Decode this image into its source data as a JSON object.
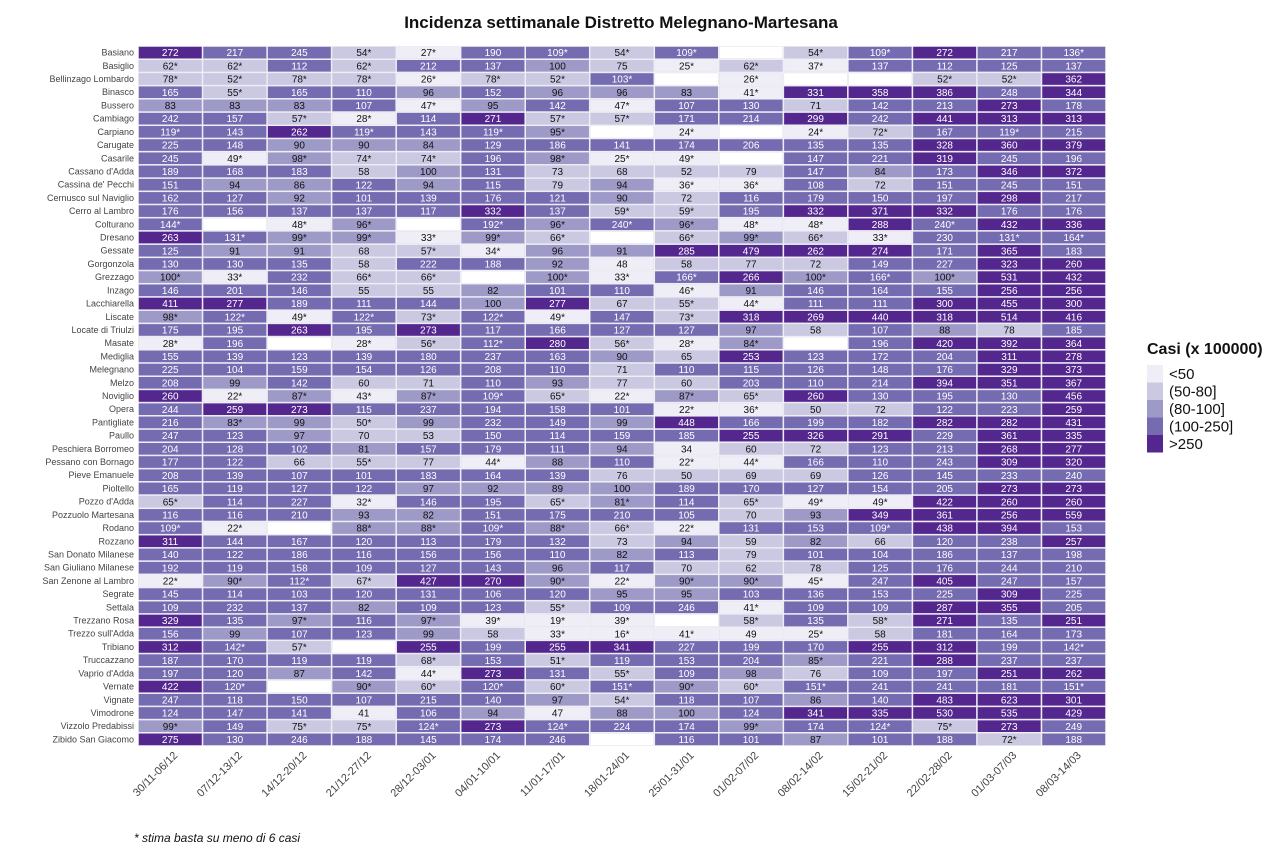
{
  "chart_data": {
    "type": "heatmap",
    "title": "Incidenza settimanale Distretto Melegnano-Martesana",
    "footnote": "* stima basta su meno di 6 casi",
    "legend_title": "Casi (x 100000)",
    "legend_placement": "right",
    "legend": [
      {
        "label": "<50",
        "color": "#efedf5"
      },
      {
        "label": "(50-80]",
        "color": "#cbc9e2"
      },
      {
        "label": "(80-100]",
        "color": "#9e9ac8"
      },
      {
        "label": "(100-250]",
        "color": "#756bb1"
      },
      {
        "label": ">250",
        "color": "#54278f"
      }
    ],
    "columns": [
      "30/11-06/12",
      "07/12-13/12",
      "14/12-20/12",
      "21/12-27/12",
      "28/12-03/01",
      "04/01-10/01",
      "11/01-17/01",
      "18/01-24/01",
      "25/01-31/01",
      "01/02-07/02",
      "08/02-14/02",
      "15/02-21/02",
      "22/02-28/02",
      "01/03-07/03",
      "08/03-14/03"
    ],
    "rows": [
      {
        "name": "Basiano",
        "values": [
          "272",
          "217",
          "245",
          "54*",
          "27*",
          "190",
          "109*",
          "54*",
          "109*",
          "",
          "54*",
          "109*",
          "272",
          "217",
          "136*"
        ]
      },
      {
        "name": "Basiglio",
        "values": [
          "62*",
          "62*",
          "112",
          "62*",
          "212",
          "137",
          "100",
          "75",
          "25*",
          "62*",
          "37*",
          "137",
          "112",
          "125",
          "137"
        ]
      },
      {
        "name": "Bellinzago Lombardo",
        "values": [
          "78*",
          "52*",
          "78*",
          "78*",
          "26*",
          "78*",
          "52*",
          "103*",
          "",
          "26*",
          "",
          "",
          "52*",
          "52*",
          "362"
        ]
      },
      {
        "name": "Binasco",
        "values": [
          "165",
          "55*",
          "165",
          "110",
          "96",
          "152",
          "96",
          "96",
          "83",
          "41*",
          "331",
          "358",
          "386",
          "248",
          "344"
        ]
      },
      {
        "name": "Bussero",
        "values": [
          "83",
          "83",
          "83",
          "107",
          "47*",
          "95",
          "142",
          "47*",
          "107",
          "130",
          "71",
          "142",
          "213",
          "273",
          "178"
        ]
      },
      {
        "name": "Cambiago",
        "values": [
          "242",
          "157",
          "57*",
          "28*",
          "114",
          "271",
          "57*",
          "57*",
          "171",
          "214",
          "299",
          "242",
          "441",
          "313",
          "313"
        ]
      },
      {
        "name": "Carpiano",
        "values": [
          "119*",
          "143",
          "262",
          "119*",
          "143",
          "119*",
          "95*",
          "",
          "24*",
          "",
          "24*",
          "72*",
          "167",
          "119*",
          "215"
        ]
      },
      {
        "name": "Carugate",
        "values": [
          "225",
          "148",
          "90",
          "90",
          "84",
          "129",
          "186",
          "141",
          "174",
          "206",
          "135",
          "135",
          "328",
          "360",
          "379"
        ]
      },
      {
        "name": "Casarile",
        "values": [
          "245",
          "49*",
          "98*",
          "74*",
          "74*",
          "196",
          "98*",
          "25*",
          "49*",
          "",
          "147",
          "221",
          "319",
          "245",
          "196"
        ]
      },
      {
        "name": "Cassano d'Adda",
        "values": [
          "189",
          "168",
          "183",
          "58",
          "100",
          "131",
          "73",
          "68",
          "52",
          "79",
          "147",
          "84",
          "173",
          "346",
          "372"
        ]
      },
      {
        "name": "Cassina de' Pecchi",
        "values": [
          "151",
          "94",
          "86",
          "122",
          "94",
          "115",
          "79",
          "94",
          "36*",
          "36*",
          "108",
          "72",
          "151",
          "245",
          "151"
        ]
      },
      {
        "name": "Cernusco sul Naviglio",
        "values": [
          "162",
          "127",
          "92",
          "101",
          "139",
          "176",
          "121",
          "90",
          "72",
          "116",
          "179",
          "150",
          "197",
          "298",
          "217"
        ]
      },
      {
        "name": "Cerro al Lambro",
        "values": [
          "176",
          "156",
          "137",
          "137",
          "117",
          "332",
          "137",
          "59*",
          "59*",
          "195",
          "332",
          "371",
          "332",
          "176",
          "176"
        ]
      },
      {
        "name": "Colturano",
        "values": [
          "144*",
          "",
          "48*",
          "96*",
          "",
          "192*",
          "96*",
          "240*",
          "96*",
          "48*",
          "48*",
          "288",
          "240*",
          "432",
          "336"
        ]
      },
      {
        "name": "Dresano",
        "values": [
          "263",
          "131*",
          "99*",
          "99*",
          "33*",
          "99*",
          "66*",
          "",
          "66*",
          "99*",
          "66*",
          "33*",
          "230",
          "131*",
          "164*"
        ]
      },
      {
        "name": "Gessate",
        "values": [
          "125",
          "91",
          "91",
          "68",
          "57*",
          "34*",
          "96",
          "91",
          "285",
          "479",
          "262",
          "274",
          "171",
          "365",
          "183"
        ]
      },
      {
        "name": "Gorgonzola",
        "values": [
          "130",
          "130",
          "135",
          "58",
          "222",
          "188",
          "92",
          "48",
          "58",
          "77",
          "72",
          "149",
          "227",
          "323",
          "260"
        ]
      },
      {
        "name": "Grezzago",
        "values": [
          "100*",
          "33*",
          "232",
          "66*",
          "66*",
          "",
          "100*",
          "33*",
          "166*",
          "266",
          "100*",
          "166*",
          "100*",
          "531",
          "432"
        ]
      },
      {
        "name": "Inzago",
        "values": [
          "146",
          "201",
          "146",
          "55",
          "55",
          "82",
          "101",
          "110",
          "46*",
          "91",
          "146",
          "164",
          "155",
          "256",
          "256"
        ]
      },
      {
        "name": "Lacchiarella",
        "values": [
          "411",
          "277",
          "189",
          "111",
          "144",
          "100",
          "277",
          "67",
          "55*",
          "44*",
          "111",
          "111",
          "300",
          "455",
          "300"
        ]
      },
      {
        "name": "Liscate",
        "values": [
          "98*",
          "122*",
          "49*",
          "122*",
          "73*",
          "122*",
          "49*",
          "147",
          "73*",
          "318",
          "269",
          "440",
          "318",
          "514",
          "416"
        ]
      },
      {
        "name": "Locate di Triulzi",
        "values": [
          "175",
          "195",
          "263",
          "195",
          "273",
          "117",
          "166",
          "127",
          "127",
          "97",
          "58",
          "107",
          "88",
          "78",
          "185"
        ]
      },
      {
        "name": "Masate",
        "values": [
          "28*",
          "196",
          "",
          "28*",
          "56*",
          "112*",
          "280",
          "56*",
          "28*",
          "84*",
          "",
          "196",
          "420",
          "392",
          "364"
        ]
      },
      {
        "name": "Mediglia",
        "values": [
          "155",
          "139",
          "123",
          "139",
          "180",
          "237",
          "163",
          "90",
          "65",
          "253",
          "123",
          "172",
          "204",
          "311",
          "278"
        ]
      },
      {
        "name": "Melegnano",
        "values": [
          "225",
          "104",
          "159",
          "154",
          "126",
          "208",
          "110",
          "71",
          "110",
          "115",
          "126",
          "148",
          "176",
          "329",
          "373"
        ]
      },
      {
        "name": "Melzo",
        "values": [
          "208",
          "99",
          "142",
          "60",
          "71",
          "110",
          "93",
          "77",
          "60",
          "203",
          "110",
          "214",
          "394",
          "351",
          "367"
        ]
      },
      {
        "name": "Noviglio",
        "values": [
          "260",
          "22*",
          "87*",
          "43*",
          "87*",
          "109*",
          "65*",
          "22*",
          "87*",
          "65*",
          "260",
          "130",
          "195",
          "130",
          "456"
        ]
      },
      {
        "name": "Opera",
        "values": [
          "244",
          "259",
          "273",
          "115",
          "237",
          "194",
          "158",
          "101",
          "22*",
          "36*",
          "50",
          "72",
          "122",
          "223",
          "259"
        ]
      },
      {
        "name": "Pantigliate",
        "values": [
          "216",
          "83*",
          "99",
          "50*",
          "99",
          "232",
          "149",
          "99",
          "448",
          "166",
          "199",
          "182",
          "282",
          "282",
          "431"
        ]
      },
      {
        "name": "Paullo",
        "values": [
          "247",
          "123",
          "97",
          "70",
          "53",
          "150",
          "114",
          "159",
          "185",
          "255",
          "326",
          "291",
          "229",
          "361",
          "335"
        ]
      },
      {
        "name": "Peschiera Borromeo",
        "values": [
          "204",
          "128",
          "102",
          "81",
          "157",
          "179",
          "111",
          "94",
          "34",
          "60",
          "72",
          "123",
          "213",
          "268",
          "277"
        ]
      },
      {
        "name": "Pessano con Bornago",
        "values": [
          "177",
          "122",
          "66",
          "55*",
          "77",
          "44*",
          "88",
          "110",
          "22*",
          "44*",
          "166",
          "110",
          "243",
          "309",
          "320"
        ]
      },
      {
        "name": "Pieve Emanuele",
        "values": [
          "208",
          "139",
          "107",
          "101",
          "183",
          "164",
          "139",
          "76",
          "50",
          "69",
          "69",
          "126",
          "145",
          "233",
          "240"
        ]
      },
      {
        "name": "Pioltello",
        "values": [
          "165",
          "119",
          "127",
          "122",
          "97",
          "92",
          "89",
          "100",
          "189",
          "170",
          "127",
          "154",
          "205",
          "273",
          "273"
        ]
      },
      {
        "name": "Pozzo d'Adda",
        "values": [
          "65*",
          "114",
          "227",
          "32*",
          "146",
          "195",
          "65*",
          "81*",
          "114",
          "65*",
          "49*",
          "49*",
          "422",
          "260",
          "260"
        ]
      },
      {
        "name": "Pozzuolo Martesana",
        "values": [
          "116",
          "116",
          "210",
          "93",
          "82",
          "151",
          "175",
          "210",
          "105",
          "70",
          "93",
          "349",
          "361",
          "256",
          "559"
        ]
      },
      {
        "name": "Rodano",
        "values": [
          "109*",
          "22*",
          "",
          "88*",
          "88*",
          "109*",
          "88*",
          "66*",
          "22*",
          "131",
          "153",
          "109*",
          "438",
          "394",
          "153"
        ]
      },
      {
        "name": "Rozzano",
        "values": [
          "311",
          "144",
          "167",
          "120",
          "113",
          "179",
          "132",
          "73",
          "94",
          "59",
          "82",
          "66",
          "120",
          "238",
          "257"
        ]
      },
      {
        "name": "San Donato Milanese",
        "values": [
          "140",
          "122",
          "186",
          "116",
          "156",
          "156",
          "110",
          "82",
          "113",
          "79",
          "101",
          "104",
          "186",
          "137",
          "198"
        ]
      },
      {
        "name": "San Giuliano Milanese",
        "values": [
          "192",
          "119",
          "158",
          "109",
          "127",
          "143",
          "96",
          "117",
          "70",
          "62",
          "78",
          "125",
          "176",
          "244",
          "210"
        ]
      },
      {
        "name": "San Zenone al Lambro",
        "values": [
          "22*",
          "90*",
          "112*",
          "67*",
          "427",
          "270",
          "90*",
          "22*",
          "90*",
          "90*",
          "45*",
          "247",
          "405",
          "247",
          "157"
        ]
      },
      {
        "name": "Segrate",
        "values": [
          "145",
          "114",
          "103",
          "120",
          "131",
          "106",
          "120",
          "95",
          "95",
          "103",
          "136",
          "153",
          "225",
          "309",
          "225"
        ]
      },
      {
        "name": "Settala",
        "values": [
          "109",
          "232",
          "137",
          "82",
          "109",
          "123",
          "55*",
          "109",
          "246",
          "41*",
          "109",
          "109",
          "287",
          "355",
          "205"
        ]
      },
      {
        "name": "Trezzano Rosa",
        "values": [
          "329",
          "135",
          "97*",
          "116",
          "97*",
          "39*",
          "19*",
          "39*",
          "",
          "58*",
          "135",
          "58*",
          "271",
          "135",
          "251"
        ]
      },
      {
        "name": "Trezzo sull'Adda",
        "values": [
          "156",
          "99",
          "107",
          "123",
          "99",
          "58",
          "33*",
          "16*",
          "41*",
          "49",
          "25*",
          "58",
          "181",
          "164",
          "173"
        ]
      },
      {
        "name": "Tribiano",
        "values": [
          "312",
          "142*",
          "57*",
          "",
          "255",
          "199",
          "255",
          "341",
          "227",
          "199",
          "170",
          "255",
          "312",
          "199",
          "142*"
        ]
      },
      {
        "name": "Truccazzano",
        "values": [
          "187",
          "170",
          "119",
          "119",
          "68*",
          "153",
          "51*",
          "119",
          "153",
          "204",
          "85*",
          "221",
          "288",
          "237",
          "237"
        ]
      },
      {
        "name": "Vaprio d'Adda",
        "values": [
          "197",
          "120",
          "87",
          "142",
          "44*",
          "273",
          "131",
          "55*",
          "109",
          "98",
          "76",
          "109",
          "197",
          "251",
          "262"
        ]
      },
      {
        "name": "Vernate",
        "values": [
          "422",
          "120*",
          "",
          "90*",
          "60*",
          "120*",
          "60*",
          "151*",
          "90*",
          "60*",
          "151*",
          "241",
          "241",
          "181",
          "151*"
        ]
      },
      {
        "name": "Vignate",
        "values": [
          "247",
          "118",
          "150",
          "107",
          "215",
          "140",
          "97",
          "54*",
          "118",
          "107",
          "86",
          "140",
          "483",
          "623",
          "301"
        ]
      },
      {
        "name": "Vimodrone",
        "values": [
          "124",
          "147",
          "141",
          "41",
          "106",
          "94",
          "47",
          "88",
          "100",
          "124",
          "341",
          "335",
          "530",
          "535",
          "429"
        ]
      },
      {
        "name": "Vizzolo Predabissi",
        "values": [
          "99*",
          "149",
          "75*",
          "75*",
          "124*",
          "273",
          "124*",
          "224",
          "174",
          "99*",
          "174",
          "124*",
          "75*",
          "273",
          "249"
        ]
      },
      {
        "name": "Zibido San Giacomo",
        "values": [
          "275",
          "130",
          "246",
          "188",
          "145",
          "174",
          "246",
          "",
          "116",
          "101",
          "87",
          "101",
          "188",
          "72*",
          "188"
        ]
      }
    ]
  }
}
